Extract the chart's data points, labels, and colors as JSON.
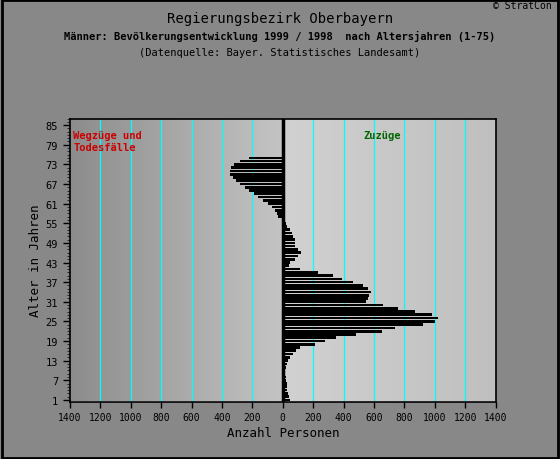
{
  "title_line1": "Regierungsbezirk Oberbayern",
  "title_line2": "Männer: Bevölkerungsentwicklung 1999 / 1998  nach Altersjahren (1-75)",
  "title_line3": "(Datenquelle: Bayer. Statistisches Landesamt)",
  "xlabel": "Anzahl Personen",
  "ylabel": "Alter in Jahren",
  "copyright": "© StratCon",
  "label_left": "Wegzüge und\nTodesfälle",
  "label_right": "Zuzüge",
  "xlim": [
    -1400,
    1400
  ],
  "xticks": [
    -1400,
    -1200,
    -1000,
    -800,
    -600,
    -400,
    -200,
    0,
    200,
    400,
    600,
    800,
    1000,
    1200,
    1400
  ],
  "xtick_labels": [
    "1400",
    "1200",
    "1000",
    "800",
    "600",
    "400",
    "200",
    "0",
    "200",
    "400",
    "600",
    "800",
    "1000",
    "1200",
    "1400"
  ],
  "yticks": [
    1,
    7,
    13,
    19,
    25,
    31,
    37,
    43,
    49,
    55,
    61,
    67,
    73,
    79,
    85
  ],
  "vlines_x": [
    -1200,
    -1000,
    -800,
    -600,
    -400,
    -200,
    200,
    400,
    600,
    800,
    1000,
    1200
  ],
  "ages": [
    1,
    2,
    3,
    4,
    5,
    6,
    7,
    8,
    9,
    10,
    11,
    12,
    13,
    14,
    15,
    16,
    17,
    18,
    19,
    20,
    21,
    22,
    23,
    24,
    25,
    26,
    27,
    28,
    29,
    30,
    31,
    32,
    33,
    34,
    35,
    36,
    37,
    38,
    39,
    40,
    41,
    42,
    43,
    44,
    45,
    46,
    47,
    48,
    49,
    50,
    51,
    52,
    53,
    54,
    55,
    56,
    57,
    58,
    59,
    60,
    61,
    62,
    63,
    64,
    65,
    66,
    67,
    68,
    69,
    70,
    71,
    72,
    73,
    74,
    75
  ],
  "values": [
    50,
    40,
    35,
    30,
    25,
    25,
    20,
    20,
    15,
    15,
    20,
    25,
    35,
    50,
    70,
    90,
    110,
    210,
    280,
    350,
    480,
    650,
    740,
    920,
    1000,
    1020,
    980,
    870,
    760,
    660,
    550,
    560,
    570,
    580,
    560,
    530,
    460,
    390,
    330,
    230,
    110,
    40,
    50,
    80,
    100,
    120,
    100,
    80,
    80,
    80,
    70,
    60,
    50,
    30,
    20,
    10,
    -30,
    -40,
    -50,
    -70,
    -100,
    -130,
    -160,
    -190,
    -220,
    -250,
    -280,
    -310,
    -330,
    -350,
    -350,
    -340,
    -320,
    -280,
    -220
  ],
  "bar_color": "#000000",
  "vline_color": "#00ffff",
  "zero_line_color": "#000000",
  "fig_bg_color": "#888888",
  "frame_color": "#000000",
  "label_left_color": "#cc0000",
  "label_right_color": "#006600"
}
